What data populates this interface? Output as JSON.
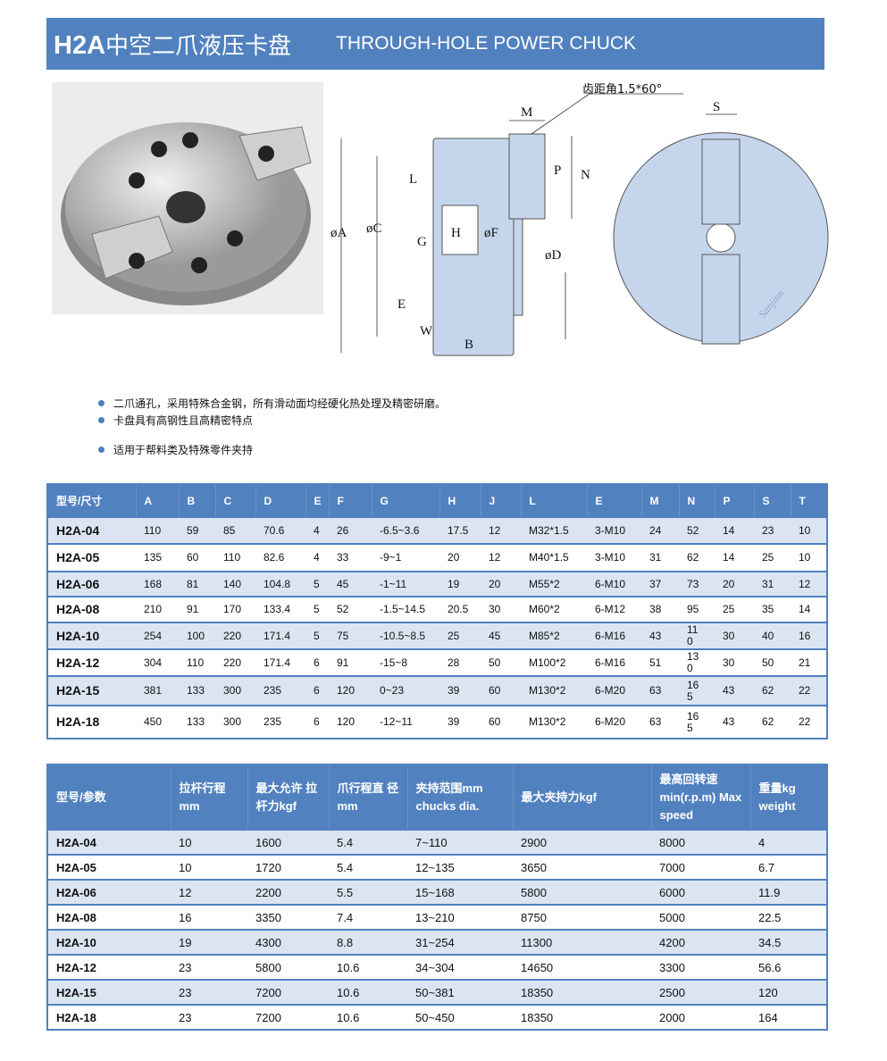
{
  "header": {
    "model": "H2A",
    "title_cn": "中空二爪液压卡盘",
    "title_en": "THROUGH-HOLE POWER CHUCK"
  },
  "drawing": {
    "labels": {
      "tooth": "齿距角1.5*60°",
      "M": "M",
      "S": "S",
      "P": "P",
      "N": "N",
      "L": "L",
      "A": "øA",
      "C": "øC",
      "G": "G",
      "H": "H",
      "F": "øF",
      "D": "øD",
      "E": "E",
      "W": "W",
      "B": "B"
    },
    "logo": "Sanjinn"
  },
  "bullets": [
    "二爪通孔，采用特殊合金钢，所有滑动面均经硬化热处理及精密研磨。",
    "卡盘具有高钢性且高精密特点",
    "适用于帮料类及特殊零件夹持"
  ],
  "dimensions": {
    "headers": [
      "型号/尺寸",
      "A",
      "B",
      "C",
      "D",
      "E",
      "F",
      "G",
      "H",
      "J",
      "L",
      "E",
      "M",
      "N",
      "P",
      "S",
      "T"
    ],
    "rows": [
      [
        "H2A-04",
        "110",
        "59",
        "85",
        "70.6",
        "4",
        "26",
        "-6.5~3.6",
        "17.5",
        "12",
        "M32*1.5",
        "3-M10",
        "24",
        "52",
        "14",
        "23",
        "10"
      ],
      [
        "H2A-05",
        "135",
        "60",
        "110",
        "82.6",
        "4",
        "33",
        "-9~1",
        "20",
        "12",
        "M40*1.5",
        "3-M10",
        "31",
        "62",
        "14",
        "25",
        "10"
      ],
      [
        "H2A-06",
        "168",
        "81",
        "140",
        "104.8",
        "5",
        "45",
        "-1~11",
        "19",
        "20",
        "M55*2",
        "6-M10",
        "37",
        "73",
        "20",
        "31",
        "12"
      ],
      [
        "H2A-08",
        "210",
        "91",
        "170",
        "133.4",
        "5",
        "52",
        "-1.5~14.5",
        "20.5",
        "30",
        "M60*2",
        "6-M12",
        "38",
        "95",
        "25",
        "35",
        "14"
      ],
      [
        "H2A-10",
        "254",
        "100",
        "220",
        "171.4",
        "5",
        "75",
        "-10.5~8.5",
        "25",
        "45",
        "M85*2",
        "6-M16",
        "43",
        "11 0",
        "30",
        "40",
        "16"
      ],
      [
        "H2A-12",
        "304",
        "110",
        "220",
        "171.4",
        "6",
        "91",
        "-15~8",
        "28",
        "50",
        "M100*2",
        "6-M16",
        "51",
        "13 0",
        "30",
        "50",
        "21"
      ],
      [
        "H2A-15",
        "381",
        "133",
        "300",
        "235",
        "6",
        "120",
        "0~23",
        "39",
        "60",
        "M130*2",
        "6-M20",
        "63",
        "16 5",
        "43",
        "62",
        "22"
      ],
      [
        "H2A-18",
        "450",
        "133",
        "300",
        "235",
        "6",
        "120",
        "-12~11",
        "39",
        "60",
        "M130*2",
        "6-M20",
        "63",
        "16 5",
        "43",
        "62",
        "22"
      ]
    ]
  },
  "parameters": {
    "headers": [
      "型号/参数",
      "拉杆行程 mm",
      "最大允许 拉杆力kgf",
      "爪行程直 径mm",
      "夹持范围mm chucks dia.",
      "最大夹持力kgf",
      "最高回转速 min(r.p.m) Max speed",
      "重量kg weight"
    ],
    "rows": [
      [
        "H2A-04",
        "10",
        "1600",
        "5.4",
        "7~110",
        "2900",
        "8000",
        "4"
      ],
      [
        "H2A-05",
        "10",
        "1720",
        "5.4",
        "12~135",
        "3650",
        "7000",
        "6.7"
      ],
      [
        "H2A-06",
        "12",
        "2200",
        "5.5",
        "15~168",
        "5800",
        "6000",
        "11.9"
      ],
      [
        "H2A-08",
        "16",
        "3350",
        "7.4",
        "13~210",
        "8750",
        "5000",
        "22.5"
      ],
      [
        "H2A-10",
        "19",
        "4300",
        "8.8",
        "31~254",
        "11300",
        "4200",
        "34.5"
      ],
      [
        "H2A-12",
        "23",
        "5800",
        "10.6",
        "34~304",
        "14650",
        "3300",
        "56.6"
      ],
      [
        "H2A-15",
        "23",
        "7200",
        "10.6",
        "50~381",
        "18350",
        "2500",
        "120"
      ],
      [
        "H2A-18",
        "23",
        "7200",
        "10.6",
        "50~450",
        "18350",
        "2000",
        "164"
      ]
    ]
  }
}
